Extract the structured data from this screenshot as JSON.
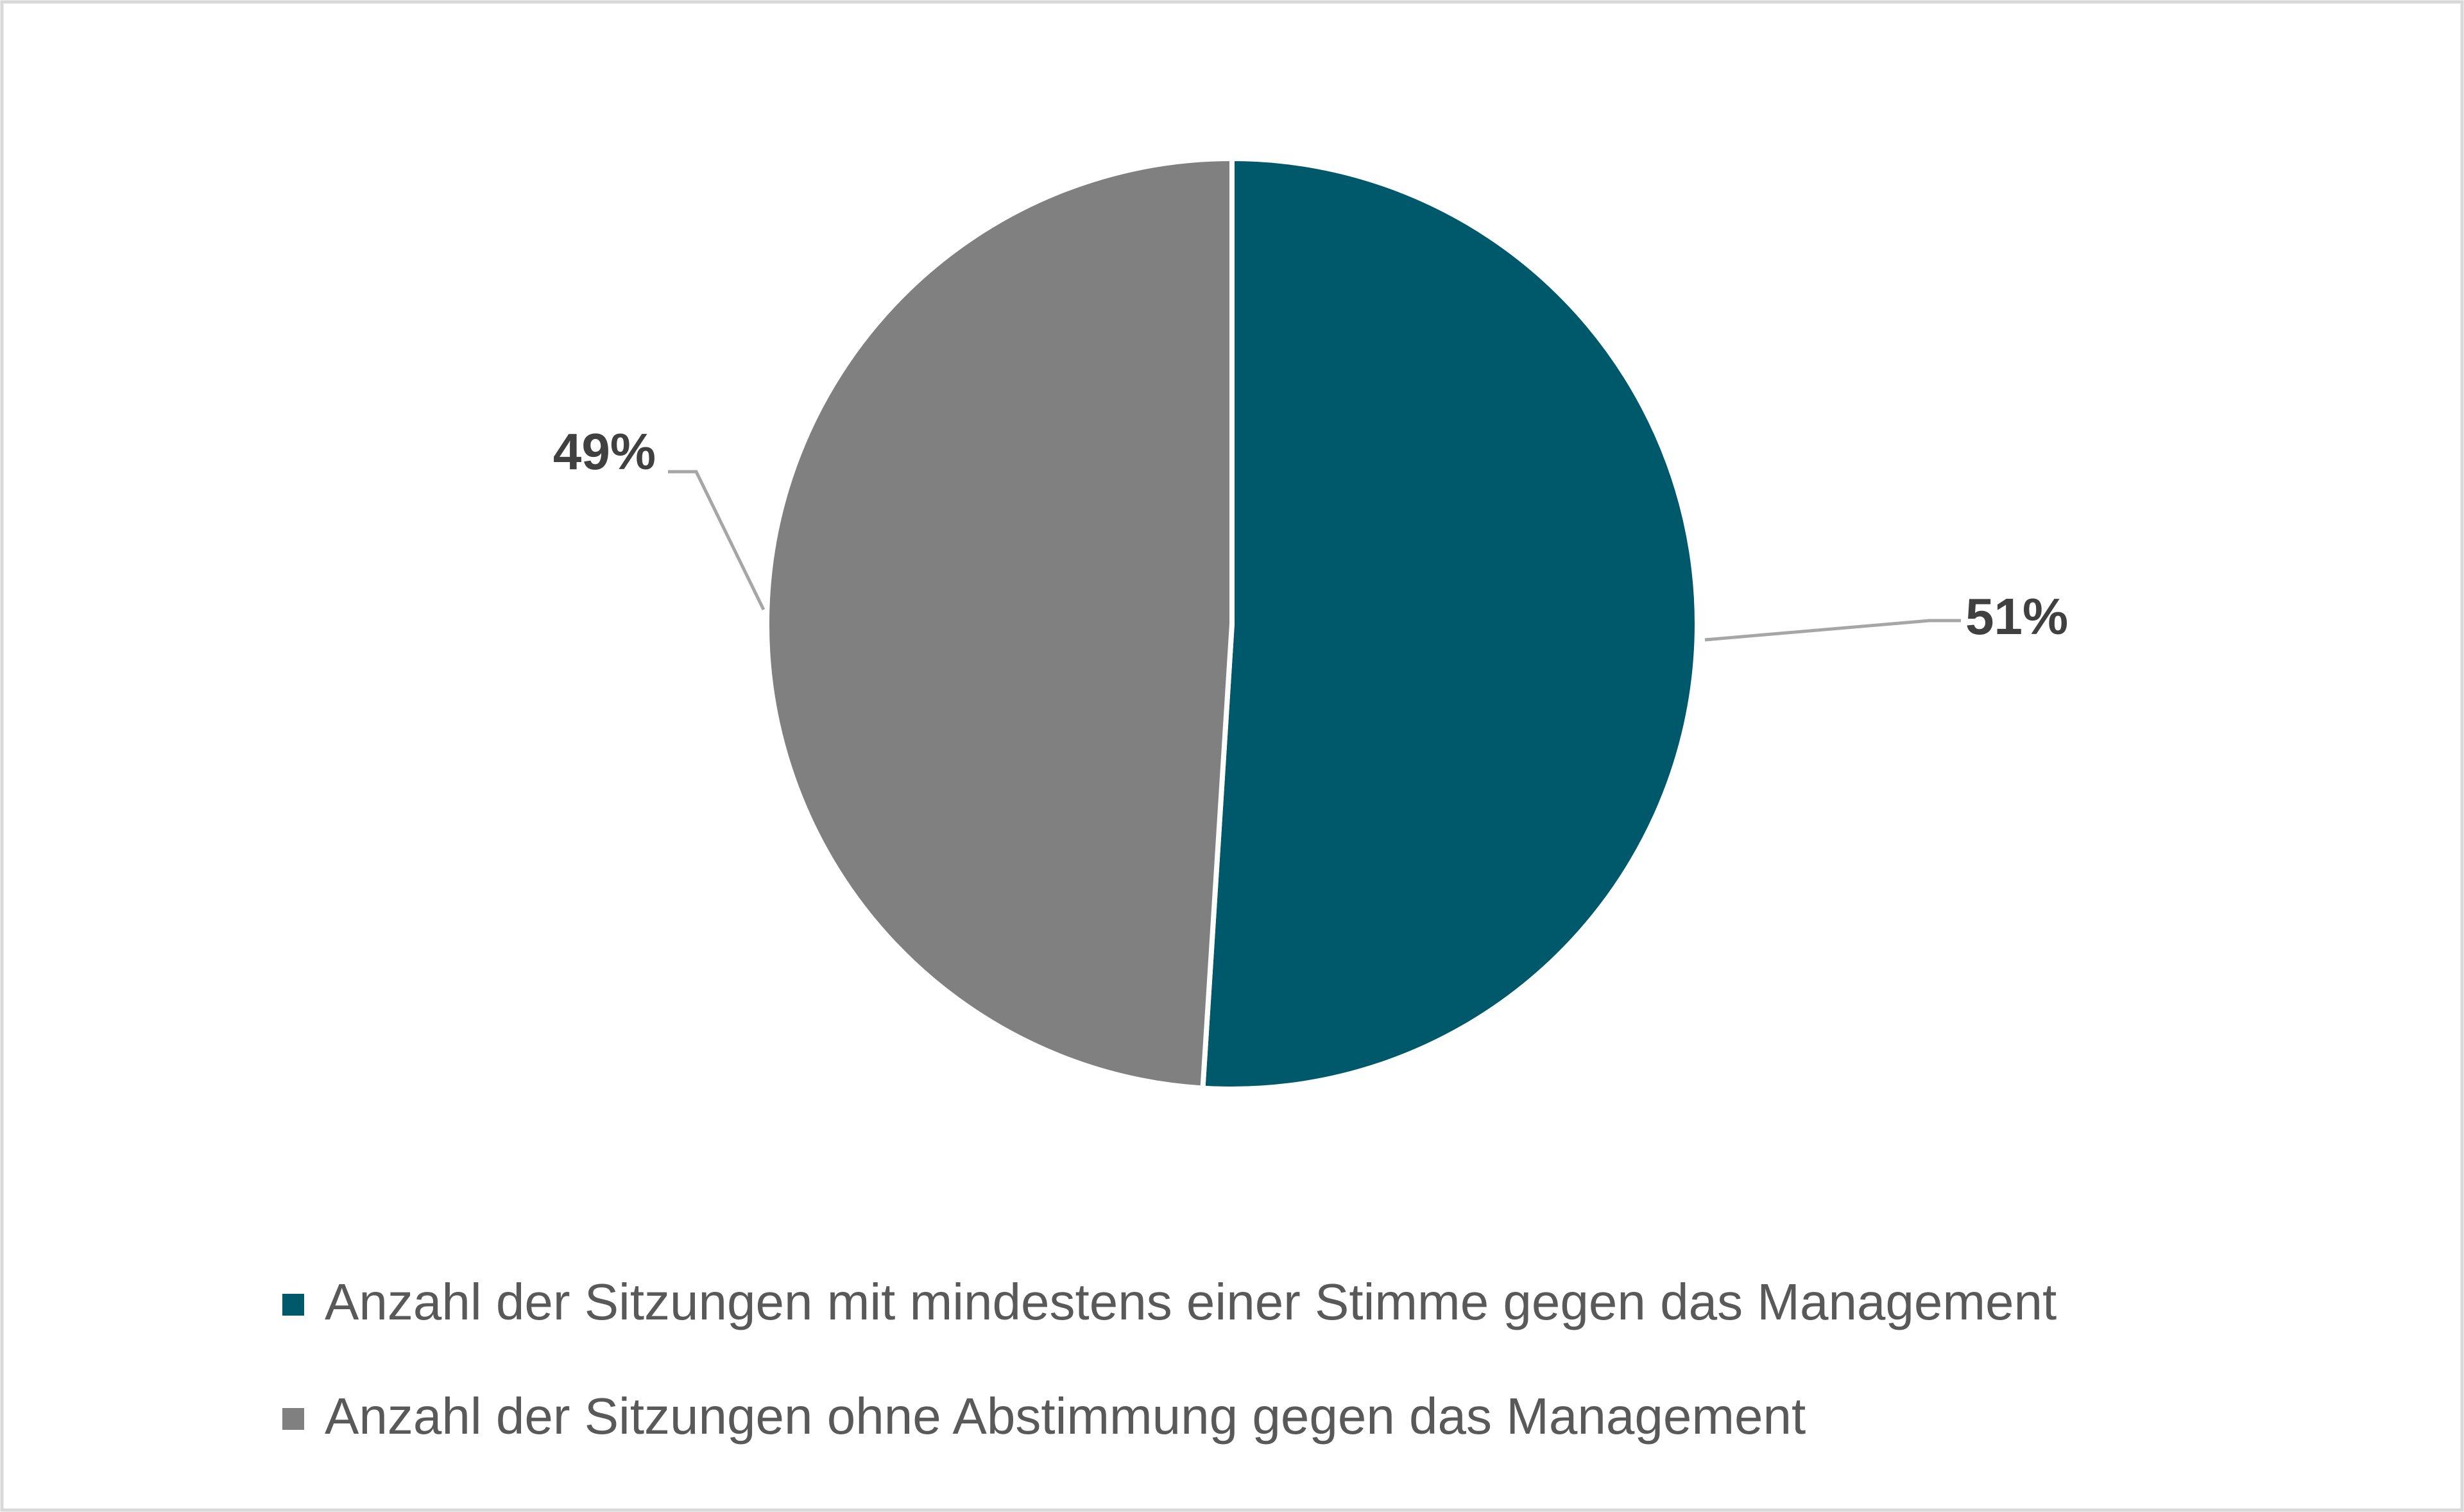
{
  "chart_data": {
    "type": "pie",
    "title": "",
    "start_angle_deg": 0,
    "direction": "clockwise",
    "slices": [
      {
        "name": "Anzahl der Sitzungen mit mindestens einer Stimme gegen das Management",
        "value": 51,
        "label": "51%",
        "color": "#00586b"
      },
      {
        "name": "Anzahl der Sitzungen ohne Abstimmung gegen das Management",
        "value": 49,
        "label": "49%",
        "color": "#808080"
      }
    ],
    "legend_position": "bottom"
  }
}
